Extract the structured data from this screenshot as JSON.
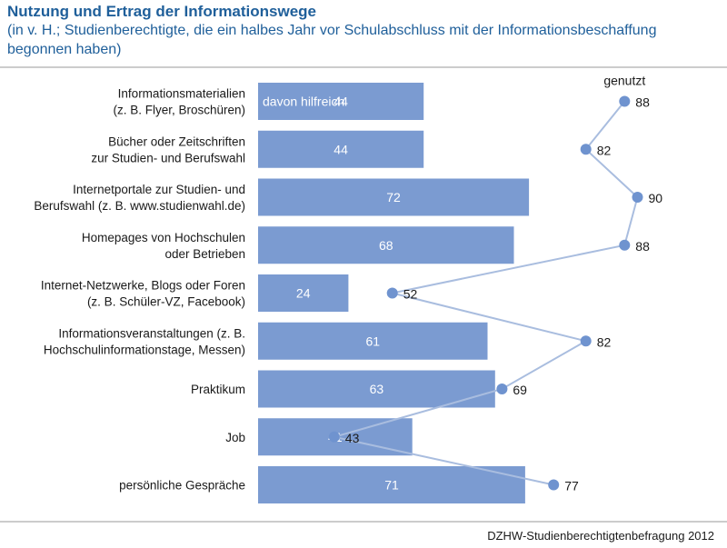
{
  "chart_data": {
    "type": "bar",
    "title": "Nutzung und Ertrag der Informationswege",
    "subtitle": "(in v. H.; Studienberechtigte, die ein halbes Jahr vor Schulabschluss mit der Informationsbeschaffung begonnen haben)",
    "categories": [
      [
        "Informationsmaterialien",
        "(z. B. Flyer, Broschüren)"
      ],
      [
        "Bücher oder Zeitschriften",
        "zur Studien- und Berufswahl"
      ],
      [
        "Internetportale zur Studien- und",
        "Berufswahl (z. B. www.studienwahl.de)"
      ],
      [
        "Homepages von Hochschulen",
        "oder Betrieben"
      ],
      [
        "Internet-Netzwerke, Blogs oder Foren",
        "(z. B. Schüler-VZ, Facebook)"
      ],
      [
        "Informationsveranstaltungen (z. B.",
        "Hochschulinformationstage, Messen)"
      ],
      [
        "Praktikum"
      ],
      [
        "Job"
      ],
      [
        "persönliche Gespräche"
      ]
    ],
    "series": [
      {
        "name": "davon hilfreich",
        "type": "bar",
        "values": [
          44,
          44,
          72,
          68,
          24,
          61,
          63,
          41,
          71
        ]
      },
      {
        "name": "genutzt",
        "type": "line",
        "values": [
          88,
          82,
          90,
          88,
          52,
          82,
          69,
          43,
          77
        ]
      }
    ],
    "colors": {
      "bar": "#7b9bd1",
      "line": "#a9bddf",
      "point": "#6f93cf"
    }
  },
  "source": "DZHW-Studienberechtigtenbefragung 2012"
}
